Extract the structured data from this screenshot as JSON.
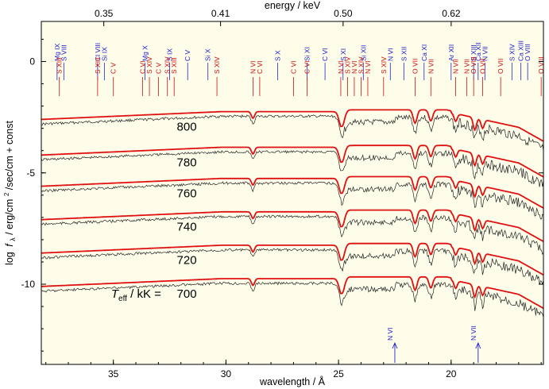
{
  "chart_data": {
    "type": "line",
    "top_axis_title": "energy / keV",
    "xlabel": "wavelength / Å",
    "ylabel": "log f_λ / erg/cm²/sec/cm + const",
    "ylabel_parts": {
      "log": "log",
      "f": "f",
      "lambda": "λ",
      "rest": " / erg/cm",
      "sup": "2",
      "tail": "/sec/cm + const"
    },
    "x_range": [
      38.2,
      15.9
    ],
    "y_range": [
      -13.6,
      1.8
    ],
    "x_ticks": [
      35,
      30,
      25,
      20
    ],
    "y_ticks": [
      0,
      -5,
      -10
    ],
    "top_ticks": [
      "0.35",
      "0.41",
      "0.50",
      "0.62"
    ],
    "teff_prefix": "T",
    "teff_sub": "eff",
    "teff_unit": " / kK = ",
    "series": [
      {
        "label": "800",
        "offset": -2.6
      },
      {
        "label": "780",
        "offset": -4.2
      },
      {
        "label": "760",
        "offset": -5.6
      },
      {
        "label": "740",
        "offset": -7.1
      },
      {
        "label": "720",
        "offset": -8.6
      },
      {
        "label": "700",
        "offset": -10.1
      }
    ],
    "blue_lines": [
      {
        "label": "Mg IX",
        "x": 37.5
      },
      {
        "label": "S VIII",
        "x": 37.2
      },
      {
        "label": "Cl VIII",
        "x": 35.7
      },
      {
        "label": "Si IX",
        "x": 35.4
      },
      {
        "label": "Mg X",
        "x": 33.6
      },
      {
        "label": "S IX",
        "x": 32.5
      },
      {
        "label": "C V",
        "x": 31.7
      },
      {
        "label": "Si X",
        "x": 30.8
      },
      {
        "label": "S X",
        "x": 27.7
      },
      {
        "label": "Si XI",
        "x": 26.4
      },
      {
        "label": "C VI",
        "x": 25.6
      },
      {
        "label": "S XI",
        "x": 24.8
      },
      {
        "label": "Si XII",
        "x": 23.9
      },
      {
        "label": "N VI",
        "x": 22.7
      },
      {
        "label": "S XII",
        "x": 22.1
      },
      {
        "label": "Ca XI",
        "x": 21.2
      },
      {
        "label": "Ar XII",
        "x": 20.0
      },
      {
        "label": "S XIII",
        "x": 19.0
      },
      {
        "label": "Ca XII",
        "x": 18.8
      },
      {
        "label": "N VII",
        "x": 18.5
      },
      {
        "label": "S XIV",
        "x": 17.3
      },
      {
        "label": "Ca XIII",
        "x": 16.9
      },
      {
        "label": "O VIII",
        "x": 16.6
      }
    ],
    "red_lines": [
      {
        "label": "S XIII",
        "x": 37.4
      },
      {
        "label": "S XIII",
        "x": 35.7
      },
      {
        "label": "C V",
        "x": 35.0
      },
      {
        "label": "C VI",
        "x": 33.7
      },
      {
        "label": "S XIV",
        "x": 33.4
      },
      {
        "label": "C V",
        "x": 33.0
      },
      {
        "label": "S XIV",
        "x": 32.6
      },
      {
        "label": "S XIII",
        "x": 32.3
      },
      {
        "label": "S XIV",
        "x": 30.4
      },
      {
        "label": "N VI",
        "x": 28.8
      },
      {
        "label": "C VI",
        "x": 28.5
      },
      {
        "label": "C VI",
        "x": 27.0
      },
      {
        "label": "C VI",
        "x": 26.4
      },
      {
        "label": "N VI",
        "x": 24.9
      },
      {
        "label": "S XIV",
        "x": 24.6
      },
      {
        "label": "N VI",
        "x": 24.3
      },
      {
        "label": "S XIV",
        "x": 24.0
      },
      {
        "label": "N VI",
        "x": 23.7
      },
      {
        "label": "S XIV",
        "x": 23.0
      },
      {
        "label": "O VII",
        "x": 21.6
      },
      {
        "label": "N VII",
        "x": 20.9
      },
      {
        "label": "N VII",
        "x": 19.8
      },
      {
        "label": "N VII",
        "x": 19.3
      },
      {
        "label": "O VIII",
        "x": 19.0
      },
      {
        "label": "O VII",
        "x": 18.6
      },
      {
        "label": "O VII",
        "x": 17.8
      },
      {
        "label": "O VIII",
        "x": 16.0
      }
    ],
    "arrows": [
      {
        "label": "N VI",
        "x": 22.5
      },
      {
        "label": "N VII",
        "x": 18.8
      }
    ],
    "features": [
      {
        "x": 24.85,
        "depth": 0.75,
        "width": 0.16
      },
      {
        "x": 21.6,
        "depth": 0.6,
        "width": 0.12
      },
      {
        "x": 20.9,
        "depth": 0.5,
        "width": 0.12
      },
      {
        "x": 19.8,
        "depth": 0.35,
        "width": 0.1
      },
      {
        "x": 18.95,
        "depth": 0.55,
        "width": 0.1
      },
      {
        "x": 28.8,
        "depth": 0.3,
        "width": 0.1
      },
      {
        "x": 18.6,
        "depth": 0.4,
        "width": 0.1
      }
    ]
  }
}
